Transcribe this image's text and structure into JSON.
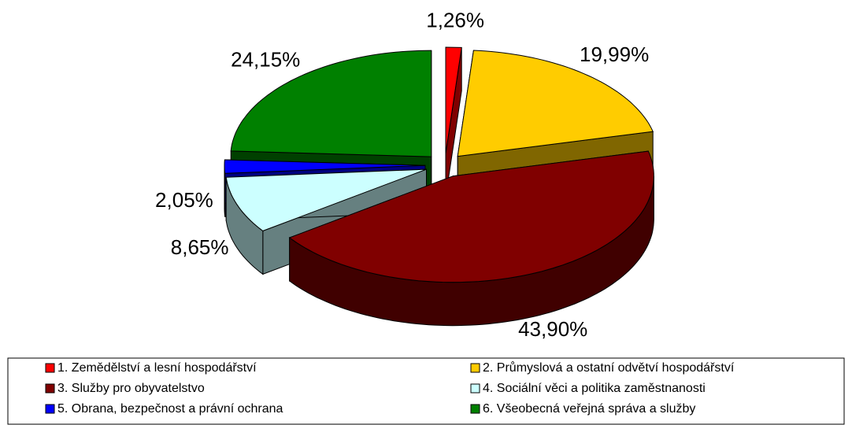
{
  "chart_data": {
    "type": "pie",
    "categories": [
      "1. Zemědělství a lesní hospodářství",
      "2. Průmyslová a ostatní odvětví hospodářství",
      "3. Služby pro obyvatelstvo",
      "4. Sociální věci a politika zaměstnanosti",
      "5. Obrana, bezpečnost a právní ochrana",
      "6. Všeobecná veřejná správa a služby"
    ],
    "values": [
      1.26,
      19.99,
      43.9,
      8.65,
      2.05,
      24.15
    ],
    "value_labels": [
      "1,26%",
      "19,99%",
      "43,90%",
      "8,65%",
      "2,05%",
      "24,15%"
    ],
    "colors": [
      "#ff0000",
      "#ffcc00",
      "#800000",
      "#ccffff",
      "#0000ff",
      "#008000"
    ]
  }
}
